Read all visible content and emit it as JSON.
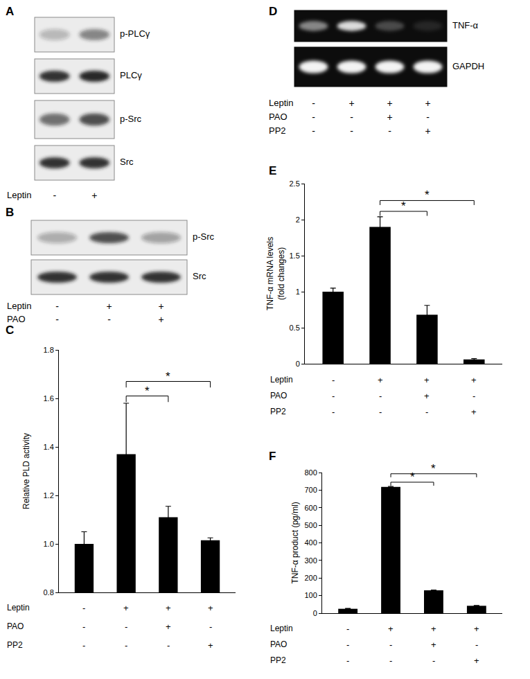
{
  "blots": [
    {
      "panel": "A",
      "type": "blot",
      "bands": [
        {
          "label": "p-PLCγ",
          "intensity": [
            0.25,
            0.5
          ]
        },
        {
          "label": "PLCγ",
          "intensity": [
            0.9,
            0.95
          ]
        },
        {
          "label": "p-Src",
          "intensity": [
            0.6,
            0.75
          ]
        },
        {
          "label": "Src",
          "intensity": [
            0.9,
            0.9
          ]
        }
      ],
      "conditions": [
        {
          "name": "Leptin",
          "values": [
            "-",
            "+"
          ]
        }
      ]
    },
    {
      "panel": "B",
      "type": "blot",
      "bands": [
        {
          "label": "p-Src",
          "intensity": [
            0.3,
            0.75,
            0.35
          ]
        },
        {
          "label": "Src",
          "intensity": [
            0.9,
            0.9,
            0.9
          ]
        }
      ],
      "conditions": [
        {
          "name": "Leptin",
          "values": [
            "-",
            "+",
            "+"
          ]
        },
        {
          "name": "PAO",
          "values": [
            "-",
            "-",
            "+"
          ]
        }
      ]
    },
    {
      "panel": "D",
      "type": "gel",
      "bands": [
        {
          "label": "TNF-α",
          "intensity": [
            0.5,
            0.85,
            0.25,
            0.1
          ]
        },
        {
          "label": "GAPDH",
          "intensity": [
            0.95,
            0.95,
            0.95,
            0.95
          ]
        }
      ],
      "conditions": [
        {
          "name": "Leptin",
          "values": [
            "-",
            "+",
            "+",
            "+"
          ]
        },
        {
          "name": "PAO",
          "values": [
            "-",
            "-",
            "+",
            "-"
          ]
        },
        {
          "name": "PP2",
          "values": [
            "-",
            "-",
            "-",
            "+"
          ]
        }
      ]
    }
  ],
  "chart_data": [
    {
      "panel": "C",
      "type": "bar",
      "y_label": "Relative PLD activity",
      "categories": [
        null,
        null,
        null,
        null
      ],
      "values": [
        1.0,
        1.37,
        1.11,
        1.015
      ],
      "errors": [
        0.05,
        0.21,
        0.045,
        0.01
      ],
      "color": "#000000",
      "ylim": [
        0.8,
        1.8
      ],
      "yticks": [
        0.8,
        {
          "value": 1,
          "label": "1.0"
        },
        1.2,
        1.4,
        1.6,
        1.8
      ],
      "tick_labels": "y",
      "conditions": [
        {
          "name": "Leptin",
          "values": [
            "-",
            "+",
            "+",
            "+"
          ]
        },
        {
          "name": "PAO",
          "values": [
            "-",
            "-",
            "+",
            "-"
          ]
        },
        {
          "name": "PP2",
          "values": [
            "-",
            "-",
            "-",
            "+"
          ]
        }
      ],
      "significance": [
        {
          "from": 1,
          "to": 2,
          "label": "*"
        },
        {
          "from": 1,
          "to": 3,
          "label": "*"
        }
      ]
    },
    {
      "panel": "E",
      "type": "bar",
      "y_label": [
        "TNF-α mRNA levels",
        "(fold changes)"
      ],
      "categories": [
        null,
        null,
        null,
        null
      ],
      "values": [
        1.0,
        1.9,
        0.68,
        0.06
      ],
      "errors": [
        0.05,
        0.14,
        0.13,
        0.01
      ],
      "color": "#000000",
      "ylim": [
        0,
        2.5
      ],
      "yticks": [
        0,
        0.5,
        1,
        1.5,
        2,
        2.5
      ],
      "tick_labels": "y",
      "conditions": [
        {
          "name": "Leptin",
          "values": [
            "-",
            "+",
            "+",
            "+"
          ]
        },
        {
          "name": "PAO",
          "values": [
            "-",
            "-",
            "+",
            "-"
          ]
        },
        {
          "name": "PP2",
          "values": [
            "-",
            "-",
            "-",
            "+"
          ]
        }
      ],
      "significance": [
        {
          "from": 1,
          "to": 2,
          "label": "*"
        },
        {
          "from": 1,
          "to": 3,
          "label": "*"
        }
      ]
    },
    {
      "panel": "F",
      "type": "bar",
      "y_label": "TNF-α product (pg/ml)",
      "categories": [
        null,
        null,
        null,
        null
      ],
      "values": [
        25,
        718,
        130,
        42
      ],
      "errors": [
        2,
        3,
        2,
        2
      ],
      "color": "#000000",
      "ylim": [
        0,
        800
      ],
      "yticks": [
        0,
        100,
        200,
        300,
        400,
        500,
        600,
        700,
        800
      ],
      "tick_labels": "y",
      "conditions": [
        {
          "name": "Leptin",
          "values": [
            "-",
            "+",
            "+",
            "+"
          ]
        },
        {
          "name": "PAO",
          "values": [
            "-",
            "-",
            "+",
            "-"
          ]
        },
        {
          "name": "PP2",
          "values": [
            "-",
            "-",
            "-",
            "+"
          ]
        }
      ],
      "significance": [
        {
          "from": 1,
          "to": 2,
          "label": "*"
        },
        {
          "from": 1,
          "to": 3,
          "label": "*"
        }
      ]
    }
  ]
}
